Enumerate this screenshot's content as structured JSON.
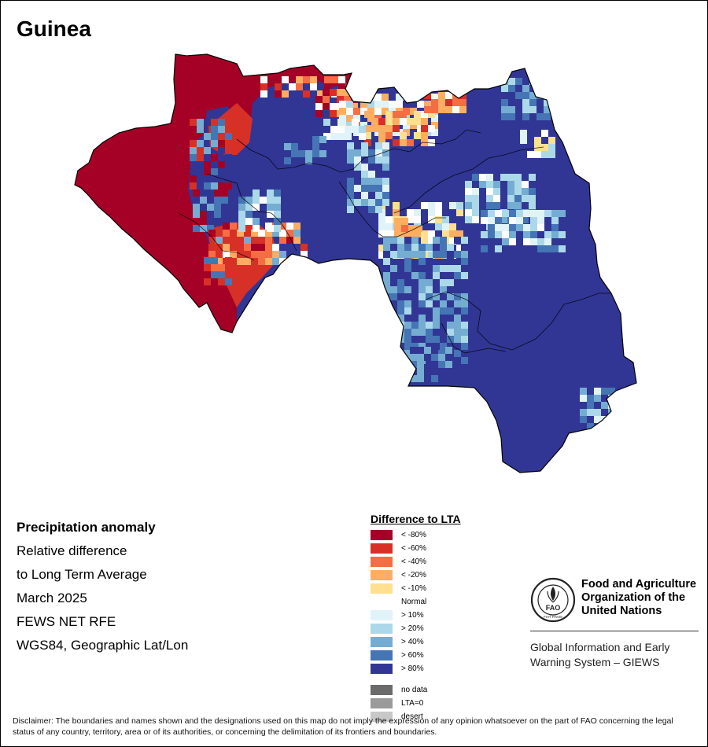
{
  "map": {
    "title": "Guinea",
    "colors": {
      "lt80": "#a50026",
      "lt60": "#d73027",
      "lt40": "#f46d43",
      "lt20": "#fdae61",
      "lt10": "#fee090",
      "normal": "#ffffff",
      "gt10": "#e0f3f8",
      "gt20": "#abd9e9",
      "gt40": "#74add1",
      "gt60": "#4575b4",
      "gt80": "#313695",
      "boundary": "#000000"
    }
  },
  "info": {
    "line1": "Precipitation anomaly",
    "line2": "Relative difference",
    "line3": "to Long Term Average",
    "line4": "March 2025",
    "line5": "FEWS NET RFE",
    "line6": "WGS84, Geographic Lat/Lon"
  },
  "legend": {
    "title": "Difference to LTA",
    "items": [
      {
        "label": "< -80%",
        "color": "#a50026"
      },
      {
        "label": "< -60%",
        "color": "#d73027"
      },
      {
        "label": "< -40%",
        "color": "#f46d43"
      },
      {
        "label": "< -20%",
        "color": "#fdae61"
      },
      {
        "label": "< -10%",
        "color": "#fee090"
      },
      {
        "label": "Normal",
        "color": "#ffffff"
      },
      {
        "label": "> 10%",
        "color": "#e0f3f8"
      },
      {
        "label": "> 20%",
        "color": "#abd9e9"
      },
      {
        "label": "> 40%",
        "color": "#74add1"
      },
      {
        "label": "> 60%",
        "color": "#4575b4"
      },
      {
        "label": "> 80%",
        "color": "#313695"
      }
    ],
    "extra": [
      {
        "label": "no data",
        "color": "#6b6b6b"
      },
      {
        "label": "LTA=0",
        "color": "#9a9a9a"
      },
      {
        "label": "desert",
        "color": "#c8c8c8"
      }
    ]
  },
  "org": {
    "fao_line1": "Food and Agriculture",
    "fao_line2": "Organization of the",
    "fao_line3": "United Nations",
    "giews_line1": "Global Information and Early",
    "giews_line2": "Warning System – GIEWS",
    "logo_text": "FAO",
    "logo_motto": "FIAT PANIS"
  },
  "disclaimer": "Disclaimer: The boundaries and names shown and the designations used on this map do not imply the expression of any opinion whatsoever on the part of FAO concerning the legal status of any country, territory, area or of its authorities, or concerning the delimitation of its frontiers and boundaries."
}
